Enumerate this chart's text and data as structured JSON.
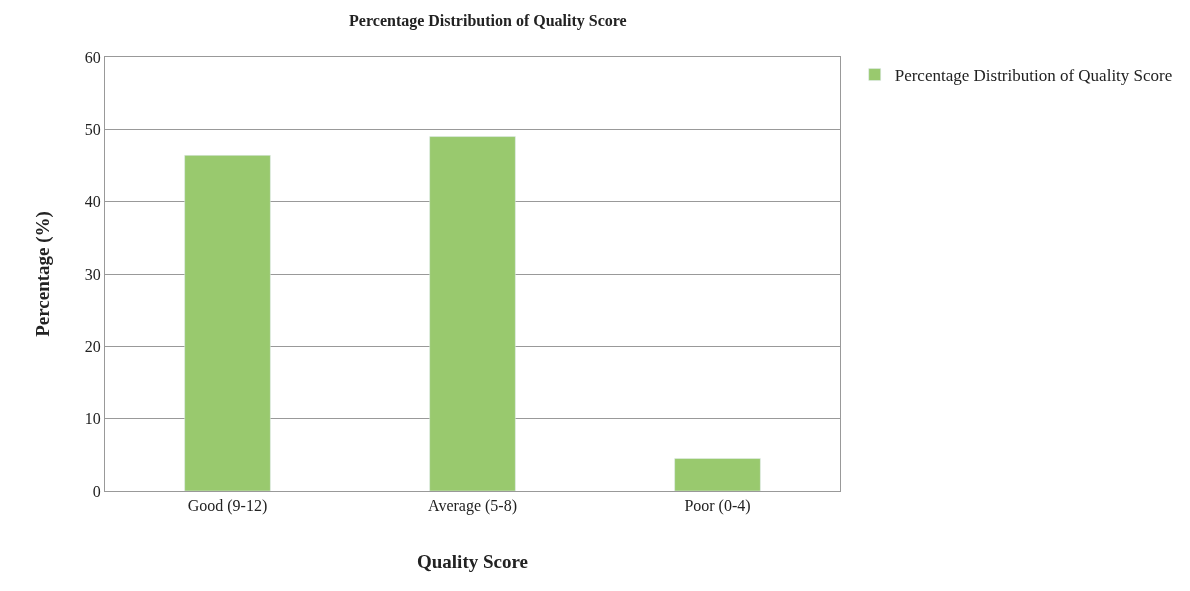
{
  "chart_data": {
    "type": "bar",
    "title": "Percentage Distribution of Quality Score",
    "xlabel": "Quality Score",
    "ylabel": "Percentage (%)",
    "categories": [
      "Good (9-12)",
      "Average (5-8)",
      "Poor (0-4)"
    ],
    "series": [
      {
        "name": "Percentage Distribution of Quality Score",
        "color": "#99c96e",
        "values": [
          46.4,
          49.0,
          4.5
        ]
      }
    ],
    "ylim": [
      0,
      60
    ],
    "yticks": [
      0,
      10,
      20,
      30,
      40,
      50,
      60
    ],
    "grid": "y",
    "legend": "right"
  }
}
